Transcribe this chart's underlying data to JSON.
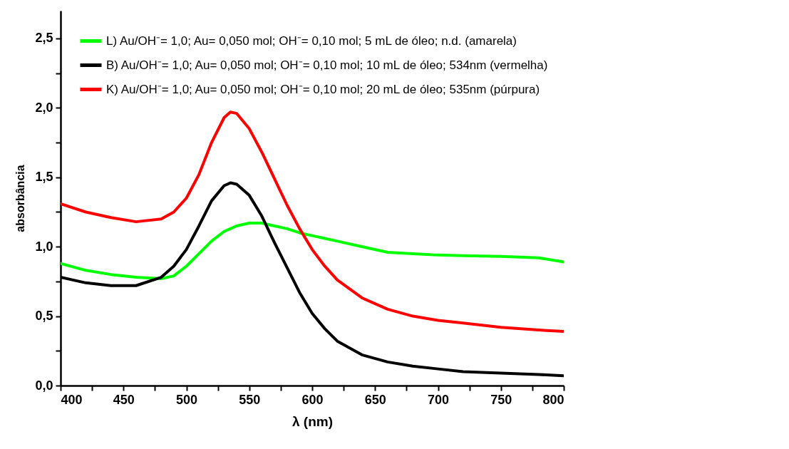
{
  "chart_data": {
    "type": "line",
    "xlabel": "λ (nm)",
    "ylabel": "absorbância",
    "xlim": [
      400,
      800
    ],
    "ylim": [
      0,
      2.7
    ],
    "xticks": [
      400,
      {
        "value": 425,
        "label": null
      },
      450,
      {
        "value": 475,
        "label": null
      },
      500,
      {
        "value": 525,
        "label": null
      },
      550,
      {
        "value": 575,
        "label": null
      },
      600,
      {
        "value": 625,
        "label": null
      },
      650,
      {
        "value": 675,
        "label": null
      },
      700,
      {
        "value": 725,
        "label": null
      },
      750,
      {
        "value": 775,
        "label": null
      },
      800
    ],
    "yticks": [
      {
        "value": 0,
        "label": "0,0"
      },
      {
        "value": 0.25,
        "label": null
      },
      {
        "value": 0.5,
        "label": "0,5"
      },
      {
        "value": 0.75,
        "label": null
      },
      {
        "value": 1,
        "label": "1,0"
      },
      {
        "value": 1.25,
        "label": null
      },
      {
        "value": 1.5,
        "label": "1,5"
      },
      {
        "value": 1.75,
        "label": null
      },
      {
        "value": 2,
        "label": "2,0"
      },
      {
        "value": 2.25,
        "label": null
      },
      {
        "value": 2.5,
        "label": "2,5"
      }
    ],
    "grid": false,
    "legend": "top left",
    "marker": "none",
    "line_style": "solid",
    "x": [
      400,
      420,
      440,
      460,
      480,
      490,
      500,
      510,
      520,
      530,
      535,
      540,
      550,
      560,
      570,
      580,
      590,
      600,
      610,
      620,
      640,
      660,
      680,
      700,
      720,
      750,
      780,
      800
    ],
    "series": [
      {
        "name": "L) Au/OH⁻= 1,0; Au= 0,050 mol; OH⁻= 0,10 mol; 5 mL de óleo; n.d. (amarela)",
        "color": "#00ff00",
        "values": [
          0.88,
          0.83,
          0.8,
          0.78,
          0.77,
          0.79,
          0.86,
          0.95,
          1.04,
          1.11,
          1.13,
          1.15,
          1.17,
          1.17,
          1.15,
          1.13,
          1.1,
          1.08,
          1.06,
          1.04,
          1.0,
          0.96,
          0.95,
          0.94,
          0.935,
          0.93,
          0.92,
          0.89
        ]
      },
      {
        "name": "B) Au/OH⁻= 1,0; Au= 0,050 mol; OH⁻= 0,10 mol; 10 mL de óleo; 534nm (vermelha)",
        "color": "#000000",
        "values": [
          0.78,
          0.74,
          0.72,
          0.72,
          0.78,
          0.86,
          0.98,
          1.15,
          1.33,
          1.44,
          1.46,
          1.45,
          1.37,
          1.22,
          1.03,
          0.85,
          0.67,
          0.52,
          0.41,
          0.32,
          0.22,
          0.17,
          0.14,
          0.12,
          0.1,
          0.09,
          0.08,
          0.07
        ]
      },
      {
        "name": "K) Au/OH⁻= 1,0; Au= 0,050 mol; OH⁻= 0,10 mol; 20 mL de óleo; 535nm (púrpura)",
        "color": "#ff0000",
        "values": [
          1.31,
          1.25,
          1.21,
          1.18,
          1.2,
          1.25,
          1.35,
          1.52,
          1.75,
          1.93,
          1.97,
          1.96,
          1.85,
          1.68,
          1.49,
          1.3,
          1.13,
          0.98,
          0.86,
          0.76,
          0.63,
          0.55,
          0.5,
          0.47,
          0.45,
          0.42,
          0.4,
          0.39
        ]
      }
    ]
  }
}
